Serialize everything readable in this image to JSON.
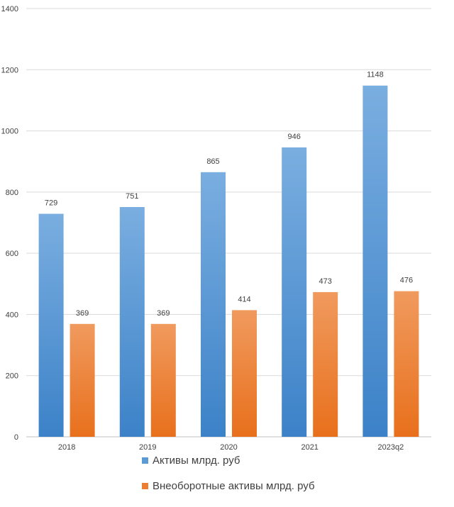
{
  "chart_data": {
    "type": "bar",
    "categories": [
      "2018",
      "2019",
      "2020",
      "2021",
      "2023q2"
    ],
    "series": [
      {
        "name": "Активы млрд. руб",
        "values": [
          729,
          751,
          865,
          946,
          1148
        ],
        "color": "#5b9bd5"
      },
      {
        "name": "Внеоборотные активы млрд. руб",
        "values": [
          369,
          369,
          414,
          473,
          476
        ],
        "color": "#ed7d31"
      }
    ],
    "ylim": [
      0,
      1400
    ],
    "yticks": [
      "0",
      "200",
      "400",
      "600",
      "800",
      "1000",
      "1200",
      "1400"
    ],
    "grid": true,
    "legend_position": "bottom"
  }
}
